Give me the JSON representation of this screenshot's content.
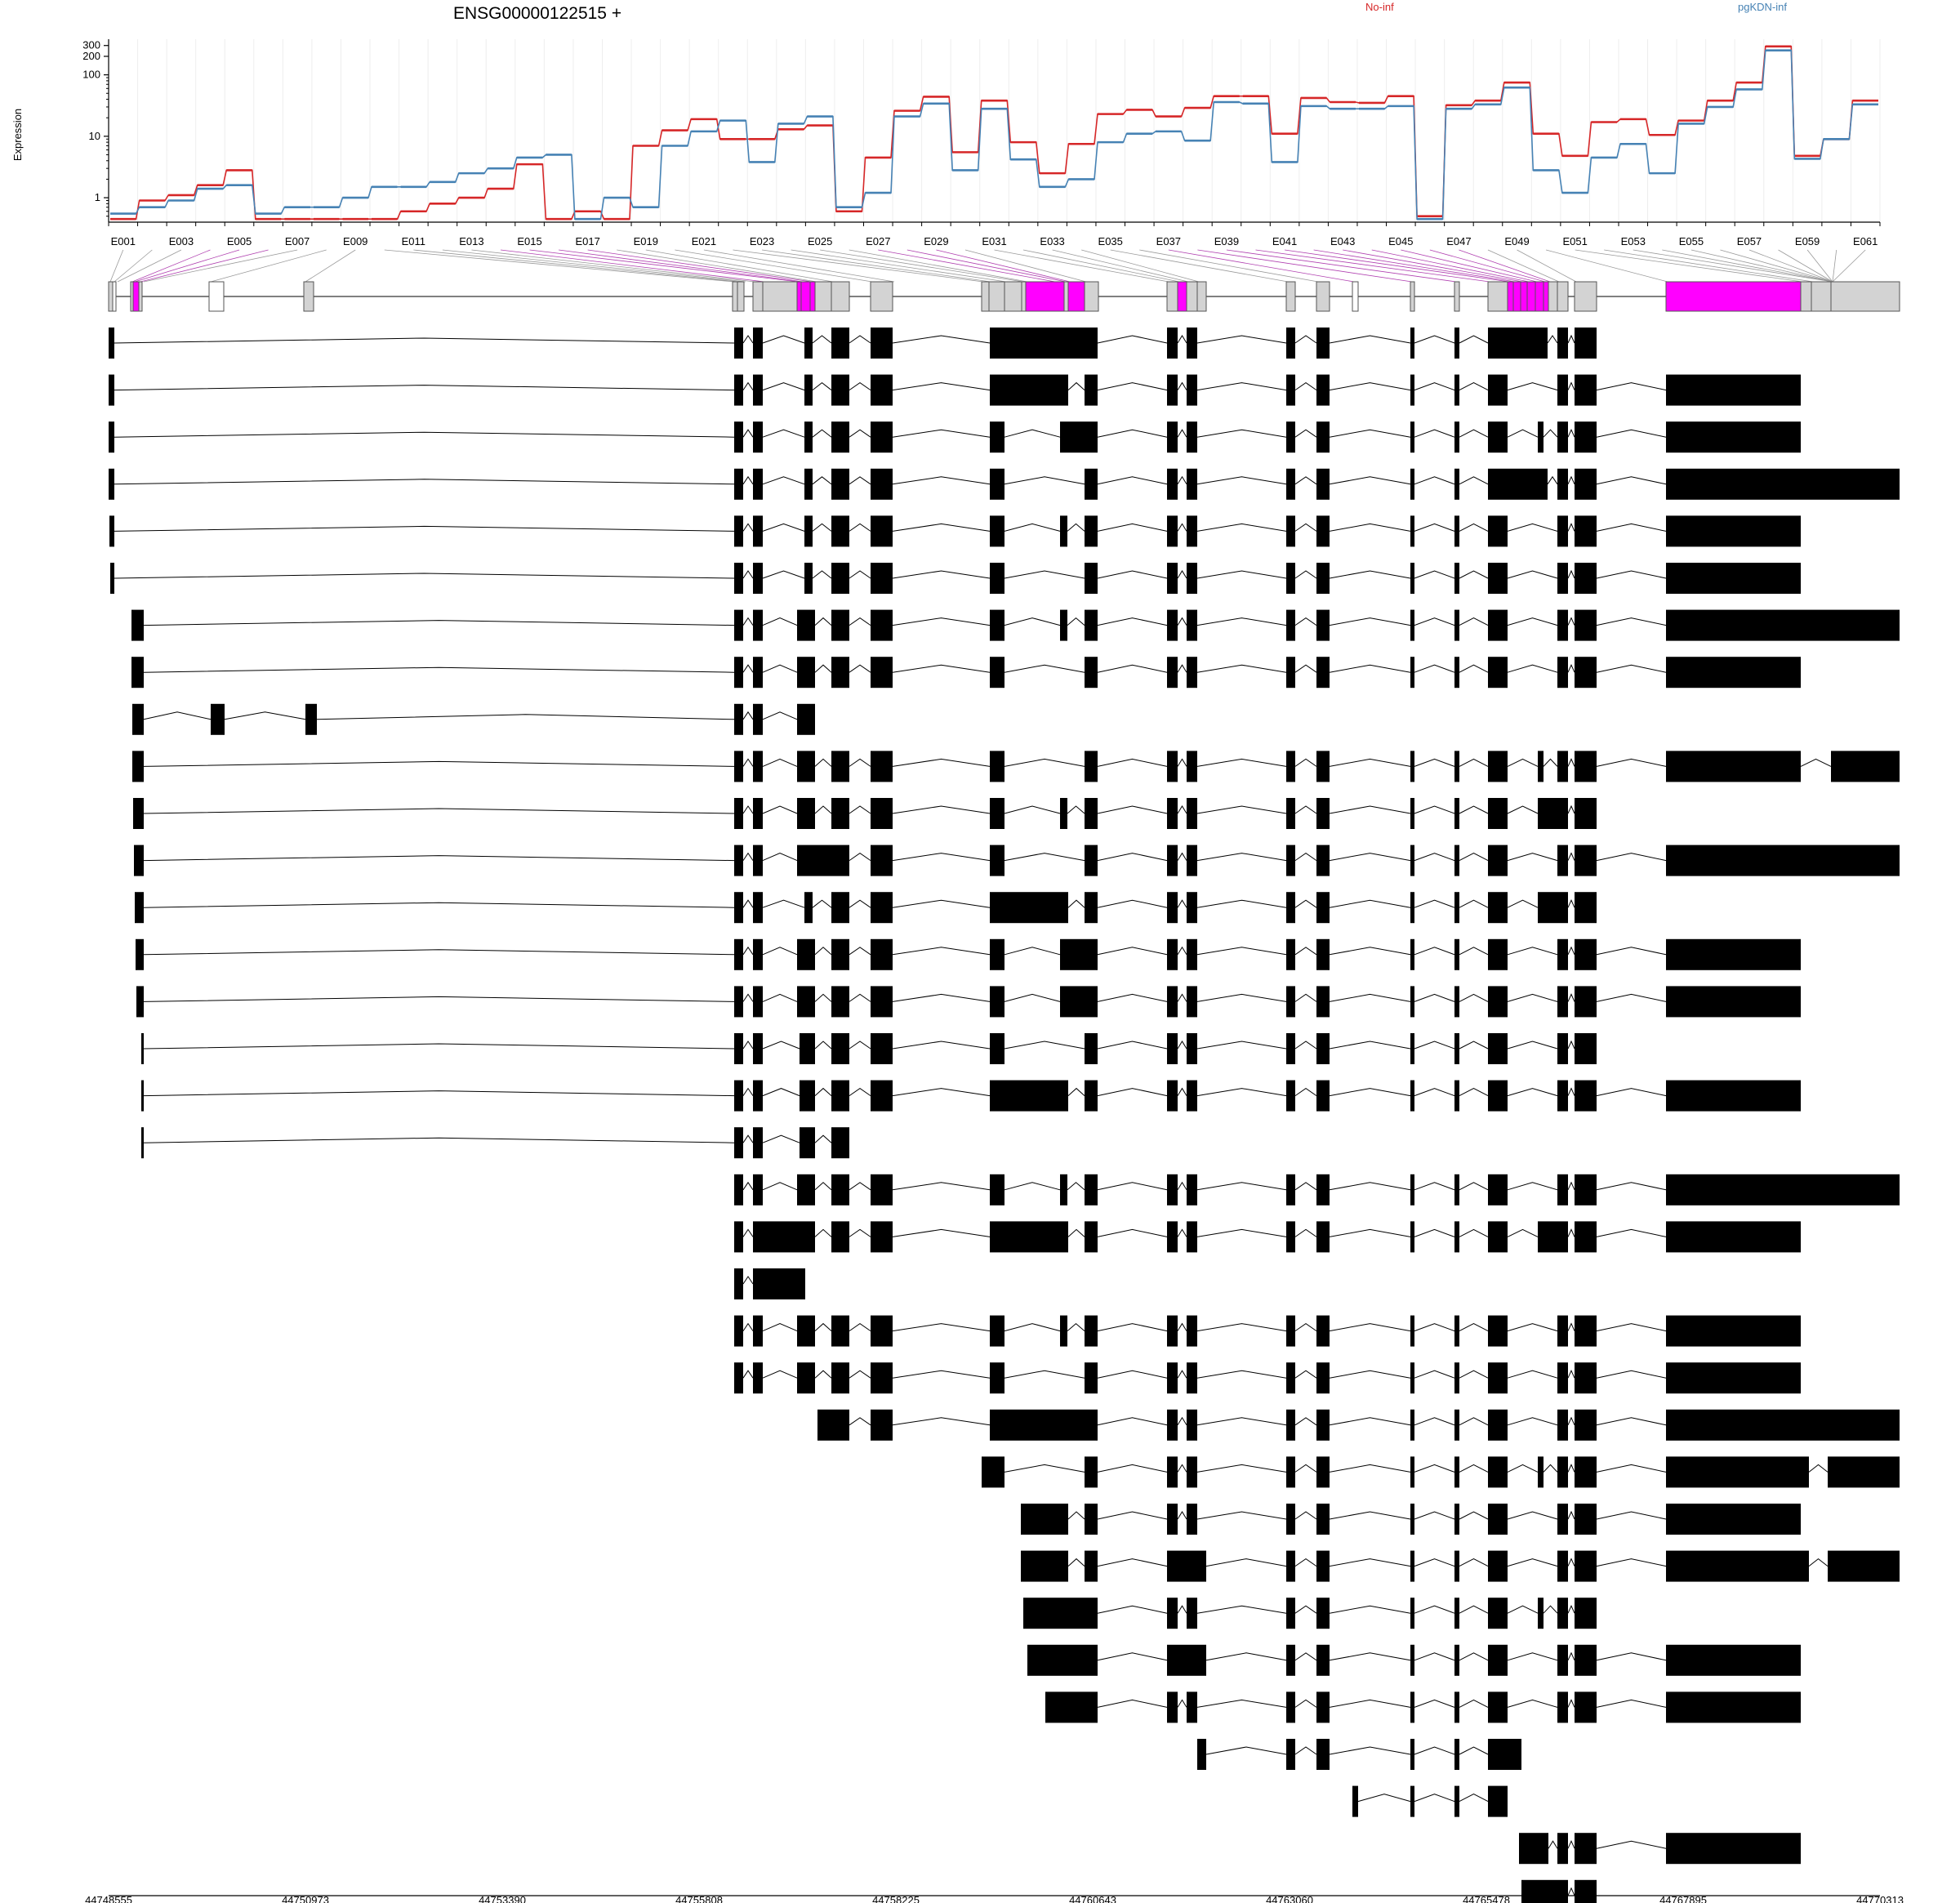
{
  "chart_data": {
    "type": "line",
    "title": "ENSG00000122515 +",
    "ylabel": "Expression",
    "yscale": "log",
    "ylim": [
      0.4,
      380
    ],
    "y_ticks": [
      1,
      10,
      100,
      200,
      300
    ],
    "y_tick_labels": [
      "1",
      "10",
      "100",
      "200",
      "300"
    ],
    "x_tick_labels": [
      "E001",
      "E003",
      "E005",
      "E007",
      "E009",
      "E011",
      "E013",
      "E015",
      "E017",
      "E019",
      "E021",
      "E023",
      "E025",
      "E027",
      "E029",
      "E031",
      "E033",
      "E035",
      "E037",
      "E039",
      "E041",
      "E043",
      "E045",
      "E047",
      "E049",
      "E051",
      "E053",
      "E055",
      "E057",
      "E059",
      "E061"
    ],
    "series": [
      {
        "name": "No-inf",
        "color": "#d62728",
        "values": [
          0.45,
          0.9,
          1.1,
          1.6,
          2.8,
          0.45,
          0.45,
          0.45,
          0.45,
          0.45,
          0.6,
          0.8,
          1.0,
          1.4,
          3.5,
          0.45,
          0.6,
          0.45,
          7.0,
          12.5,
          19.0,
          9.0,
          9.0,
          13.0,
          15.0,
          0.6,
          4.5,
          26.0,
          44.0,
          5.5,
          38.0,
          8.0,
          2.5,
          7.5,
          23.0,
          27.0,
          21.0,
          29.0,
          45.0,
          45.0,
          11.0,
          42.0,
          36.0,
          35.0,
          45.0,
          0.5,
          32.0,
          38.0,
          75.0,
          11.0,
          4.8,
          17.0,
          19.0,
          10.5,
          18.0,
          38.0,
          75.0,
          290.0,
          4.8,
          9.0,
          38.0
        ]
      },
      {
        "name": "pgKDN-inf",
        "color": "#4682b4",
        "values": [
          0.55,
          0.7,
          0.9,
          1.4,
          1.6,
          0.55,
          0.7,
          0.7,
          1.0,
          1.5,
          1.5,
          1.8,
          2.5,
          3.0,
          4.5,
          5.0,
          0.45,
          1.0,
          0.7,
          7.0,
          12.0,
          18.0,
          3.8,
          16.0,
          21.0,
          0.7,
          1.2,
          21.0,
          34.0,
          2.8,
          28.0,
          4.2,
          1.5,
          2.0,
          8.0,
          11.0,
          12.0,
          8.5,
          36.0,
          34.0,
          3.8,
          31.0,
          28.0,
          28.0,
          31.0,
          0.45,
          28.0,
          33.0,
          62.0,
          2.8,
          1.2,
          4.5,
          7.5,
          2.5,
          16.0,
          30.0,
          58.0,
          250.0,
          4.3,
          9.0,
          33.0
        ]
      }
    ],
    "legend": [
      "No-inf",
      "pgKDN-inf"
    ],
    "genomic_axis_labels": [
      "44748555",
      "44750973",
      "44753390",
      "44755808",
      "44758225",
      "44760643",
      "44763060",
      "44765478",
      "44767895",
      "44770313"
    ]
  },
  "colors": {
    "highlight_exon": "#ff00ff",
    "exon_fill": "#d3d3d3",
    "transcript_fill": "#000000",
    "no_inf": "#d62728",
    "pgkdn_inf": "#4682b4"
  }
}
